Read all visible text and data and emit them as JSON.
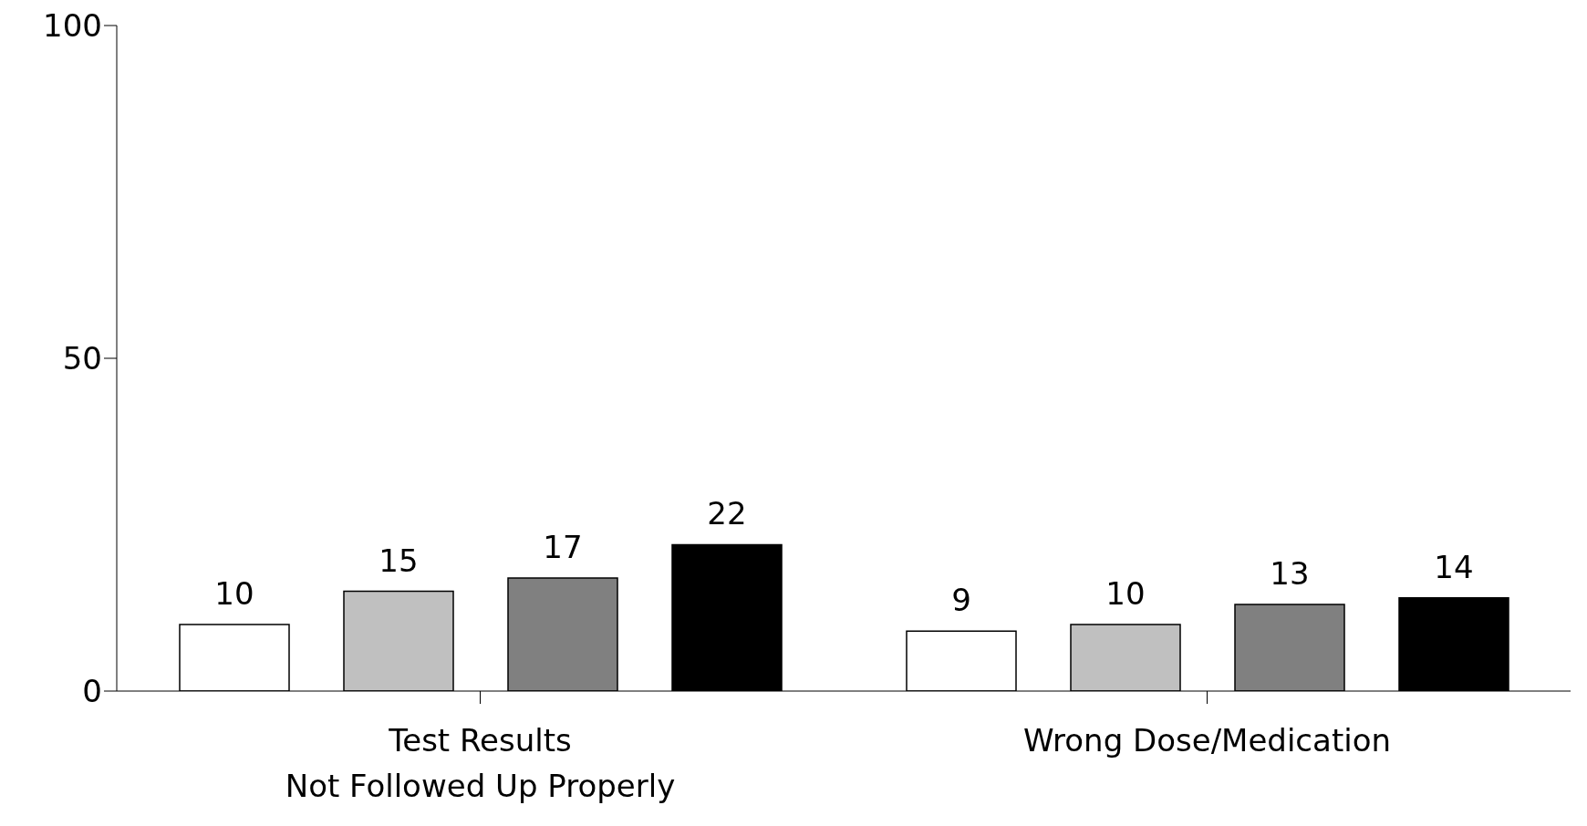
{
  "chart_data": {
    "type": "bar",
    "categories": [
      "Test Results\nNot Followed Up Properly",
      "Wrong Dose/Medication"
    ],
    "series": [
      {
        "color": "#ffffff",
        "values": [
          10,
          9
        ]
      },
      {
        "color": "#c0c0c0",
        "values": [
          15,
          10
        ]
      },
      {
        "color": "#808080",
        "values": [
          17,
          13
        ]
      },
      {
        "color": "#000000",
        "values": [
          22,
          14
        ]
      }
    ],
    "ylim": [
      0,
      100
    ],
    "yticks": [
      0,
      50,
      100
    ],
    "grid": false,
    "legend": false,
    "data_labels": true
  }
}
